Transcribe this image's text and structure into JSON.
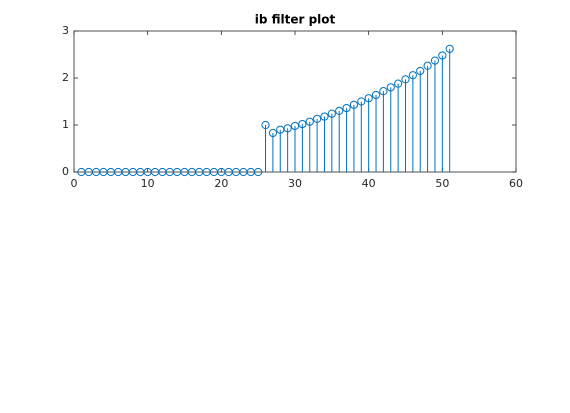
{
  "chart_data": {
    "type": "stem",
    "title": "ib filter plot",
    "x": [
      1,
      2,
      3,
      4,
      5,
      6,
      7,
      8,
      9,
      10,
      11,
      12,
      13,
      14,
      15,
      16,
      17,
      18,
      19,
      20,
      21,
      22,
      23,
      24,
      25,
      26,
      27,
      28,
      29,
      30,
      31,
      32,
      33,
      34,
      35,
      36,
      37,
      38,
      39,
      40,
      41,
      42,
      43,
      44,
      45,
      46,
      47,
      48,
      49,
      50,
      51
    ],
    "values": [
      0,
      0,
      0,
      0,
      0,
      0,
      0,
      0,
      0,
      0,
      0,
      0,
      0,
      0,
      0,
      0,
      0,
      0,
      0,
      0,
      0,
      0,
      0,
      0,
      0,
      1.0,
      0.83,
      0.9,
      0.93,
      0.98,
      1.02,
      1.07,
      1.13,
      1.18,
      1.24,
      1.3,
      1.36,
      1.43,
      1.5,
      1.57,
      1.64,
      1.72,
      1.8,
      1.88,
      1.97,
      2.06,
      2.15,
      2.26,
      2.37,
      2.48,
      2.62
    ],
    "color": "#0072bd",
    "xlim": [
      0,
      60
    ],
    "xticks": [
      0,
      10,
      20,
      30,
      40,
      50,
      60
    ],
    "ylim": [
      0,
      3
    ],
    "yticks": [
      0,
      1,
      2,
      3
    ]
  }
}
